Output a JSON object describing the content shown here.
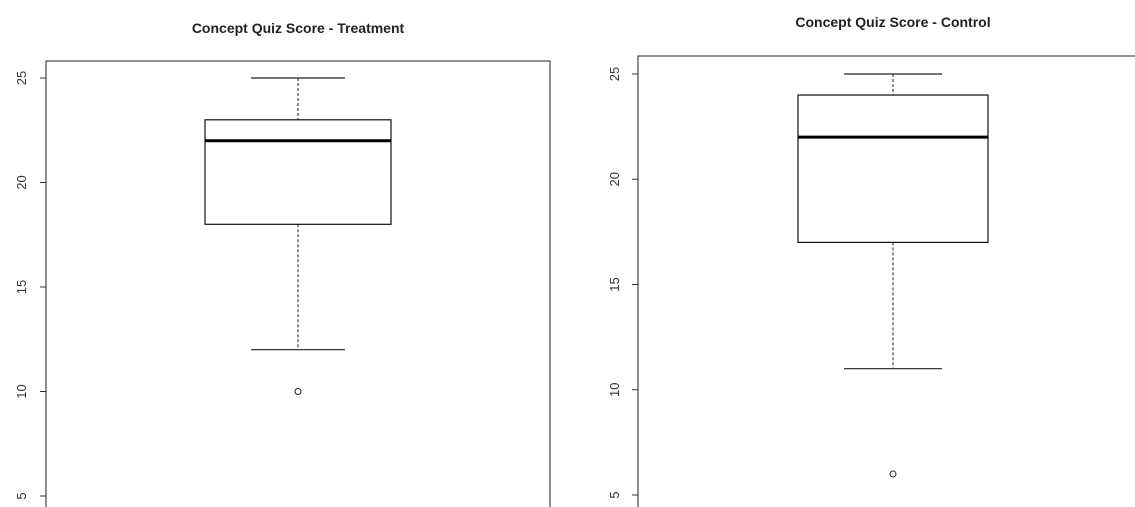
{
  "chart_data": [
    {
      "type": "boxplot",
      "title": "Concept Quiz Score - Treatment",
      "xlabel": "",
      "ylabel": "",
      "yticks": [
        5,
        10,
        15,
        20,
        25
      ],
      "ylim": [
        4.9,
        26.0
      ],
      "grid": false,
      "stats": {
        "min": 12,
        "q1": 18,
        "median": 22,
        "q3": 23,
        "max": 25
      },
      "outliers": [
        10
      ]
    },
    {
      "type": "boxplot",
      "title": "Concept Quiz Score - Control",
      "xlabel": "",
      "ylabel": "",
      "yticks": [
        5,
        10,
        15,
        20,
        25
      ],
      "ylim": [
        4.9,
        26.0
      ],
      "grid": false,
      "stats": {
        "min": 11,
        "q1": 17,
        "median": 22,
        "q3": 24,
        "max": 25
      },
      "outliers": [
        6
      ]
    }
  ]
}
